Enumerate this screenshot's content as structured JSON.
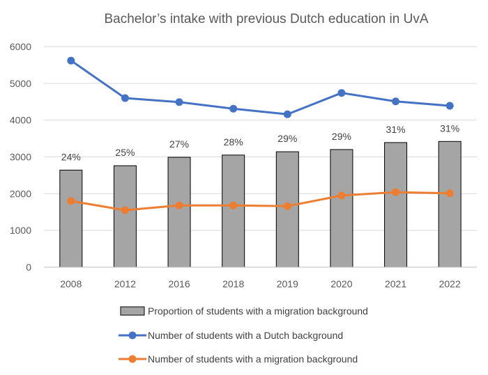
{
  "chart_data": {
    "type": "bar",
    "title": "Bachelor’s intake with previous Dutch education in UvA",
    "xlabel": "",
    "ylabel": "",
    "ylim": [
      0,
      6000
    ],
    "yticks": [
      0,
      1000,
      2000,
      3000,
      4000,
      5000,
      6000
    ],
    "grid": true,
    "legend_position": "bottom",
    "categories": [
      "2008",
      "2012",
      "2016",
      "2018",
      "2019",
      "2020",
      "2021",
      "2022"
    ],
    "series": [
      {
        "name": "Proportion of students with a migration background",
        "kind": "bar",
        "color": "#a5a5a5",
        "values": [
          2640,
          2760,
          2990,
          3050,
          3140,
          3200,
          3390,
          3420
        ],
        "labels": [
          "24%",
          "25%",
          "27%",
          "28%",
          "29%",
          "29%",
          "31%",
          "31%"
        ]
      },
      {
        "name": "Number of students with a Dutch background",
        "kind": "line",
        "color": "#4472c4",
        "values": [
          5620,
          4600,
          4490,
          4310,
          4160,
          4740,
          4510,
          4390
        ]
      },
      {
        "name": "Number of students with a migration background",
        "kind": "line",
        "color": "#ed7d31",
        "values": [
          1800,
          1550,
          1680,
          1680,
          1660,
          1950,
          2040,
          2010
        ]
      }
    ]
  }
}
